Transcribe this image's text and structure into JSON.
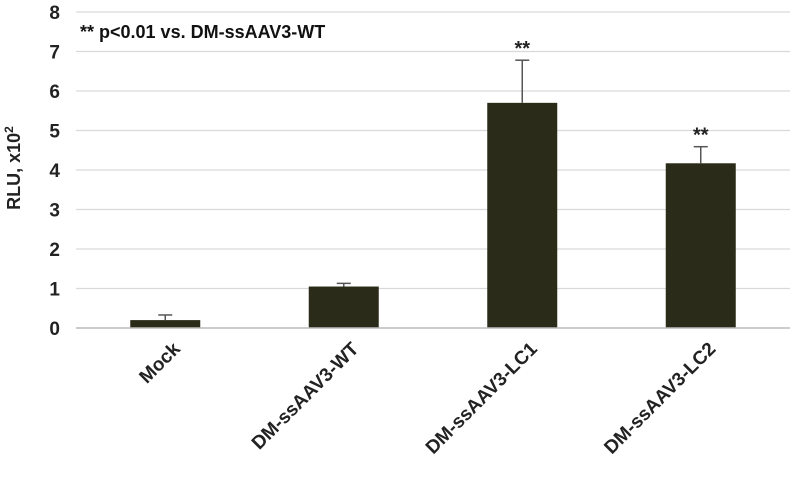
{
  "chart_data": {
    "type": "bar",
    "annotation": "** p<0.01 vs. DM-ssAAV3-WT",
    "ylabel": {
      "main": "RLU, x10",
      "superscript": "2"
    },
    "xlabel": "",
    "ylim": [
      0,
      8
    ],
    "yticks": [
      "0",
      "1",
      "2",
      "3",
      "4",
      "5",
      "6",
      "7",
      "8"
    ],
    "grid": true,
    "bar_color": "#2a2b19",
    "categories": [
      "Mock",
      "DM-ssAAV3-WT",
      "DM-ssAAV3-LC1",
      "DM-ssAAV3-LC2"
    ],
    "values": [
      0.2,
      1.05,
      5.7,
      4.17
    ],
    "errors": [
      0.13,
      0.08,
      1.08,
      0.42
    ],
    "significance": [
      "",
      "",
      "**",
      "**"
    ]
  }
}
